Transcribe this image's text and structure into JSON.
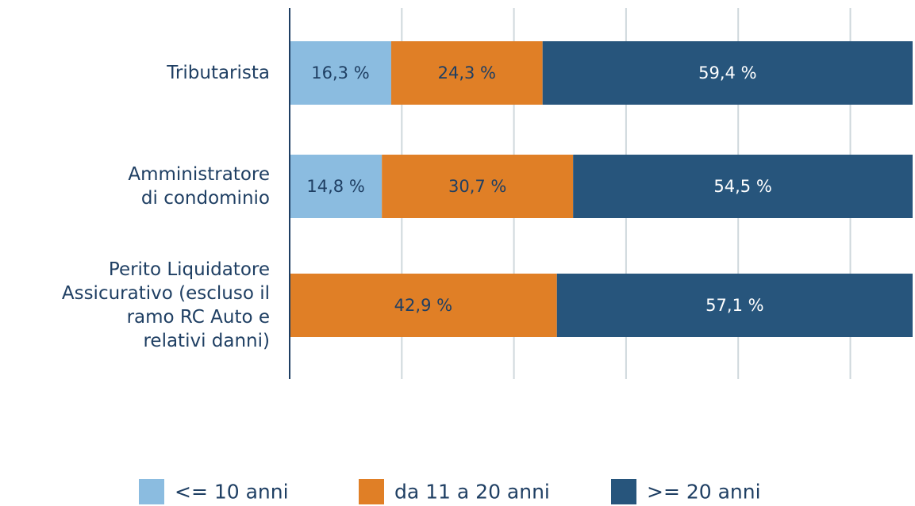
{
  "chart_data": {
    "type": "stacked_bar_horizontal",
    "categories": [
      "Tributarista",
      "Amministratore\ndi condominio",
      "Perito Liquidatore\nAssicurativo (escluso il \nramo RC Auto e\nrelativi danni)"
    ],
    "series": [
      {
        "name": "<= 10 anni",
        "color": "#8bbce0",
        "values": [
          16.3,
          14.8,
          null
        ],
        "value_labels": [
          "16,3 %",
          "14,8 %",
          null
        ]
      },
      {
        "name": "da 11 a 20 anni",
        "color": "#e07f26",
        "values": [
          24.3,
          30.7,
          42.9
        ],
        "value_labels": [
          "24,3 %",
          "30,7 %",
          "42,9 %"
        ]
      },
      {
        "name": ">= 20 anni",
        "color": "#27557c",
        "values": [
          59.4,
          54.5,
          57.1
        ],
        "value_labels": [
          "59,4 %",
          "54,5 %",
          "57,1 %"
        ]
      }
    ],
    "xlim": [
      0,
      100
    ],
    "xticks": [
      0,
      18,
      36,
      54,
      72,
      90
    ],
    "grid": true
  }
}
